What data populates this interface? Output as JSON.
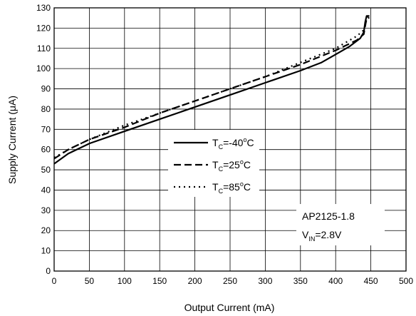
{
  "chart_data": {
    "type": "line",
    "xlabel": "Output Current (mA)",
    "ylabel": "Supply Current (μA)",
    "xlim": [
      0,
      500
    ],
    "ylim": [
      0,
      130
    ],
    "xticks": [
      0,
      50,
      100,
      150,
      200,
      250,
      300,
      350,
      400,
      450,
      500
    ],
    "yticks": [
      0,
      10,
      20,
      30,
      40,
      50,
      60,
      70,
      80,
      90,
      100,
      110,
      120,
      130
    ],
    "grid": true,
    "legend_position": "center",
    "series": [
      {
        "name": "TC=-40°C",
        "label_main": "T",
        "label_sub": "C",
        "label_rest": "=-40",
        "label_deg": "o",
        "label_unit": "C",
        "style": "solid",
        "x": [
          0,
          20,
          50,
          100,
          150,
          200,
          250,
          300,
          350,
          380,
          400,
          420,
          435,
          440,
          442,
          444,
          448
        ],
        "y": [
          53,
          58,
          63,
          69,
          75,
          81,
          87,
          93,
          99,
          103,
          107,
          111,
          115,
          118,
          123,
          126,
          126
        ]
      },
      {
        "name": "TC=25°C",
        "label_main": "T",
        "label_sub": "C",
        "label_rest": "=25",
        "label_deg": "o",
        "label_unit": "C",
        "style": "dashed",
        "x": [
          0,
          20,
          50,
          100,
          150,
          200,
          250,
          300,
          350,
          400,
          430,
          440,
          442,
          444,
          448
        ],
        "y": [
          55.5,
          60,
          65,
          71,
          78,
          84,
          90,
          96,
          102,
          109,
          114,
          117,
          121,
          125,
          125
        ]
      },
      {
        "name": "TC=85°C",
        "label_main": "T",
        "label_sub": "C",
        "label_rest": "=85",
        "label_deg": "o",
        "label_unit": "C",
        "style": "dotted",
        "x": [
          0,
          20,
          50,
          100,
          150,
          200,
          250,
          300,
          350,
          400,
          430,
          440,
          443,
          446,
          448
        ],
        "y": [
          56,
          60,
          65,
          72,
          78,
          84,
          90,
          96,
          103,
          110,
          116,
          119,
          123,
          126,
          126
        ]
      }
    ],
    "annotation": {
      "line1": "AP2125-1.8",
      "line2_main": "V",
      "line2_sub": "IN",
      "line2_rest": "=2.8V"
    }
  }
}
